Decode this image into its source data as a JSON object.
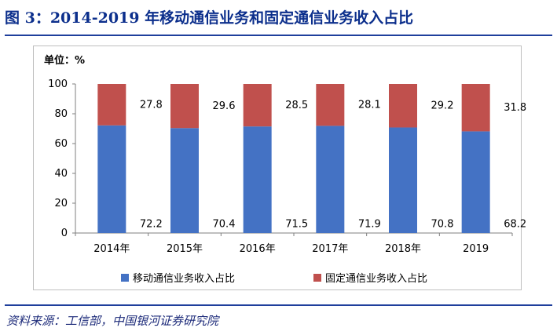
{
  "title": "图 3：2014-2019 年移动通信业务和固定通信业务收入占比",
  "unit_label": "单位：%",
  "source": "资料来源：工信部，中国银河证券研究院",
  "colors": {
    "mobile": "#4472c4",
    "fixed": "#c0504d",
    "title": "#0c2f8c"
  },
  "chart_data": {
    "type": "bar",
    "stacked": true,
    "categories": [
      "2014年",
      "2015年",
      "2016年",
      "2017年",
      "2018年",
      "2019"
    ],
    "series": [
      {
        "name": "移动通信业务收入占比",
        "values": [
          72.2,
          70.4,
          71.5,
          71.9,
          70.8,
          68.2
        ]
      },
      {
        "name": "固定通信业务收入占比",
        "values": [
          27.8,
          29.6,
          28.5,
          28.1,
          29.2,
          31.8
        ]
      }
    ],
    "ylim": [
      0,
      100
    ],
    "yticks": [
      0,
      20,
      40,
      60,
      80,
      100
    ],
    "grid": false,
    "legend_position": "bottom"
  }
}
